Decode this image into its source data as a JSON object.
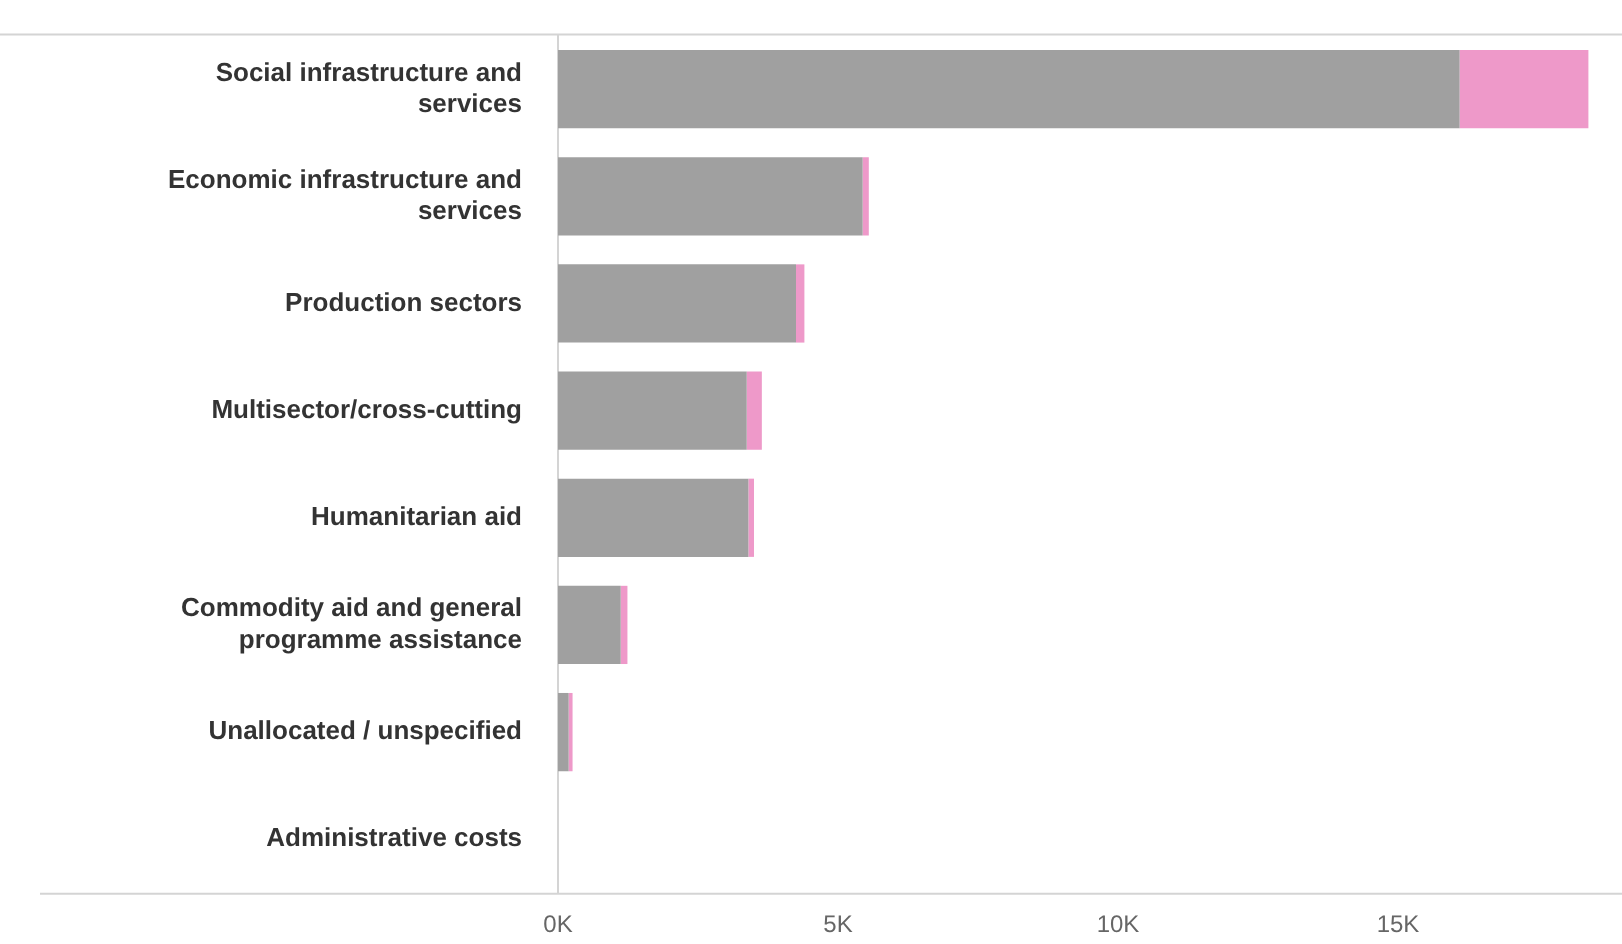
{
  "chart_data": {
    "type": "bar",
    "orientation": "horizontal",
    "stacked": true,
    "categories": [
      "Social infrastructure and services",
      "Economic infrastructure and services",
      "Production sectors",
      "Multisector/cross-cutting",
      "Humanitarian aid",
      "Commodity aid and general programme assistance",
      "Unallocated / unspecified",
      "Administrative costs"
    ],
    "series": [
      {
        "color": "#a0a0a0",
        "values": [
          16.1,
          5.44,
          4.25,
          3.37,
          3.4,
          1.12,
          0.19,
          0
        ]
      },
      {
        "color": "#ee99c9",
        "values": [
          2.3,
          0.11,
          0.15,
          0.27,
          0.1,
          0.12,
          0.07,
          0
        ]
      }
    ],
    "xlim": [
      0,
      19
    ],
    "xticks": [
      {
        "value": 0,
        "label": "0K"
      },
      {
        "value": 5,
        "label": "5K"
      },
      {
        "value": 10,
        "label": "10K"
      },
      {
        "value": 15,
        "label": "15K"
      }
    ],
    "grid": false,
    "legend": false
  }
}
